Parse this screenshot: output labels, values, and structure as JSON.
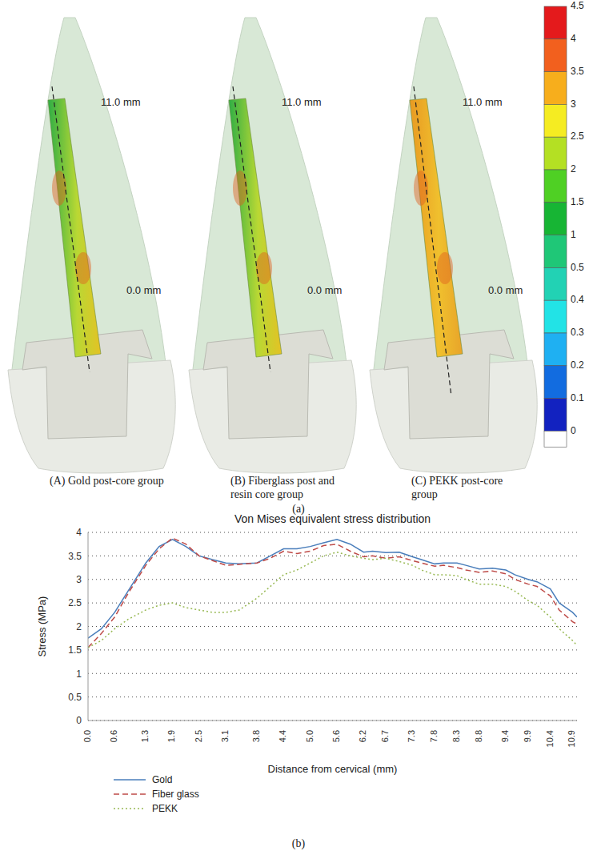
{
  "panel_a": {
    "label": "(a)",
    "images": [
      {
        "caption": "(A) Gold post-core group",
        "top_label": "11.0 mm",
        "bottom_label": "0.0 mm"
      },
      {
        "caption": "(B) Fiberglass post and resin core group",
        "top_label": "11.0 mm",
        "bottom_label": "0.0 mm"
      },
      {
        "caption": "(C) PEKK post-core group",
        "top_label": "11.0 mm",
        "bottom_label": "0.0 mm"
      }
    ],
    "colorbar": {
      "ticks": [
        4.5,
        4,
        3.5,
        3,
        2.5,
        2,
        1.5,
        1,
        0.5,
        0.4,
        0.3,
        0.2,
        0.1,
        0
      ],
      "colors": [
        "#e41a1c",
        "#f2601e",
        "#f7ae1c",
        "#f5ec22",
        "#b4e023",
        "#4fd024",
        "#17b534",
        "#1fc777",
        "#22d2b4",
        "#22e3e6",
        "#1fb0f2",
        "#126ce0",
        "#1222c0"
      ]
    }
  },
  "chart_data": {
    "type": "line",
    "title": "Von Mises equivalent stress distribution",
    "x_label": "Distance from cervical (mm)",
    "y_label": "Stress (MPa)",
    "x": [
      0,
      0.3,
      0.6,
      0.9,
      1.3,
      1.6,
      1.9,
      2.2,
      2.5,
      2.8,
      3.1,
      3.4,
      3.8,
      4.1,
      4.4,
      4.7,
      5.0,
      5.3,
      5.6,
      5.9,
      6.2,
      6.4,
      6.7,
      7.0,
      7.3,
      7.5,
      7.8,
      8.0,
      8.3,
      8.5,
      8.8,
      9.1,
      9.4,
      9.6,
      9.9,
      10.1,
      10.4,
      10.6,
      10.9,
      11.0
    ],
    "xlim": [
      0,
      11.0
    ],
    "xticks": [
      {
        "value": 0,
        "label": "0.0"
      },
      0.6,
      1.3,
      1.9,
      2.5,
      3.1,
      3.8,
      4.4,
      {
        "value": 5,
        "label": "5.0"
      },
      5.6,
      6.2,
      6.7,
      7.3,
      7.8,
      8.3,
      8.8,
      9.4,
      9.9,
      10.4,
      10.9
    ],
    "ylim": [
      0,
      4
    ],
    "yticks": [
      0,
      0.5,
      1,
      1.5,
      2,
      2.5,
      3,
      3.5,
      4
    ],
    "grid": true,
    "legend": "bottom-left",
    "series": [
      {
        "name": "Gold",
        "color": "#4a7ebb",
        "line_style": "solid",
        "values": [
          1.75,
          1.95,
          2.3,
          2.75,
          3.35,
          3.7,
          3.85,
          3.7,
          3.5,
          3.42,
          3.35,
          3.33,
          3.35,
          3.5,
          3.65,
          3.65,
          3.7,
          3.78,
          3.85,
          3.75,
          3.58,
          3.6,
          3.57,
          3.58,
          3.48,
          3.42,
          3.33,
          3.35,
          3.35,
          3.3,
          3.22,
          3.24,
          3.2,
          3.1,
          3.0,
          2.95,
          2.8,
          2.5,
          2.3,
          2.2
        ]
      },
      {
        "name": "Fiber glass",
        "color": "#be4b48",
        "line_style": "dashed",
        "values": [
          1.55,
          1.85,
          2.2,
          2.7,
          3.3,
          3.65,
          3.88,
          3.75,
          3.5,
          3.4,
          3.3,
          3.32,
          3.35,
          3.45,
          3.6,
          3.55,
          3.6,
          3.72,
          3.75,
          3.6,
          3.48,
          3.5,
          3.45,
          3.48,
          3.4,
          3.35,
          3.28,
          3.3,
          3.25,
          3.2,
          3.15,
          3.18,
          3.12,
          3.0,
          2.9,
          2.85,
          2.65,
          2.35,
          2.1,
          2.05
        ]
      },
      {
        "name": "PEKK",
        "color": "#98b954",
        "line_style": "dotted",
        "values": [
          1.55,
          1.7,
          1.95,
          2.15,
          2.35,
          2.45,
          2.5,
          2.4,
          2.35,
          2.3,
          2.3,
          2.35,
          2.6,
          2.85,
          3.1,
          3.2,
          3.35,
          3.5,
          3.58,
          3.5,
          3.45,
          3.42,
          3.45,
          3.38,
          3.3,
          3.2,
          3.1,
          3.1,
          3.08,
          3.0,
          2.9,
          2.9,
          2.85,
          2.75,
          2.55,
          2.45,
          2.2,
          1.95,
          1.7,
          1.6
        ]
      }
    ]
  },
  "panel_b": {
    "label": "(b)"
  }
}
